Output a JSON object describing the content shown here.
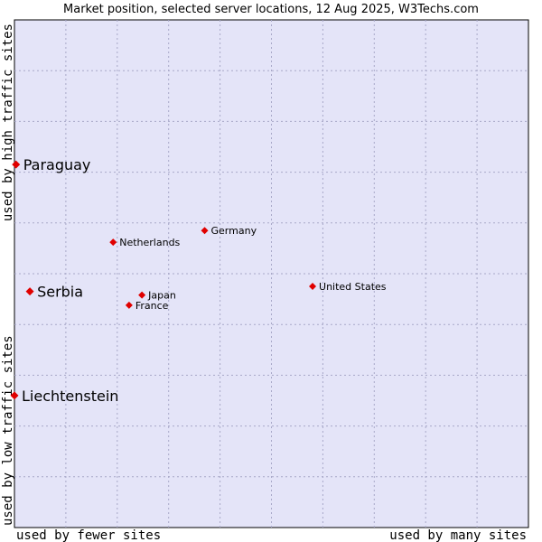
{
  "chart_data": {
    "type": "scatter",
    "title": "Market position, selected server locations, 12 Aug 2025, W3Techs.com",
    "xlabel_low": "used by fewer sites",
    "xlabel_high": "used by many sites",
    "ylabel_low": "used by low traffic sites",
    "ylabel_high": "used by high traffic sites",
    "xlim": [
      0,
      100
    ],
    "ylim": [
      0,
      100
    ],
    "grid": true,
    "plot_background": "#e4e4f8",
    "point_color": "#e00000",
    "points": [
      {
        "name": "Paraguay",
        "x": 0.3,
        "y": 71.5,
        "highlight": true
      },
      {
        "name": "Germany",
        "x": 37,
        "y": 58.5,
        "highlight": false
      },
      {
        "name": "Netherlands",
        "x": 19.2,
        "y": 56.2,
        "highlight": false
      },
      {
        "name": "United States",
        "x": 58,
        "y": 47.5,
        "highlight": false
      },
      {
        "name": "Serbia",
        "x": 3,
        "y": 46.5,
        "highlight": true
      },
      {
        "name": "Japan",
        "x": 24.8,
        "y": 45.8,
        "highlight": false
      },
      {
        "name": "France",
        "x": 22.3,
        "y": 43.8,
        "highlight": false
      },
      {
        "name": "Liechtenstein",
        "x": 0,
        "y": 26,
        "highlight": true
      }
    ]
  }
}
